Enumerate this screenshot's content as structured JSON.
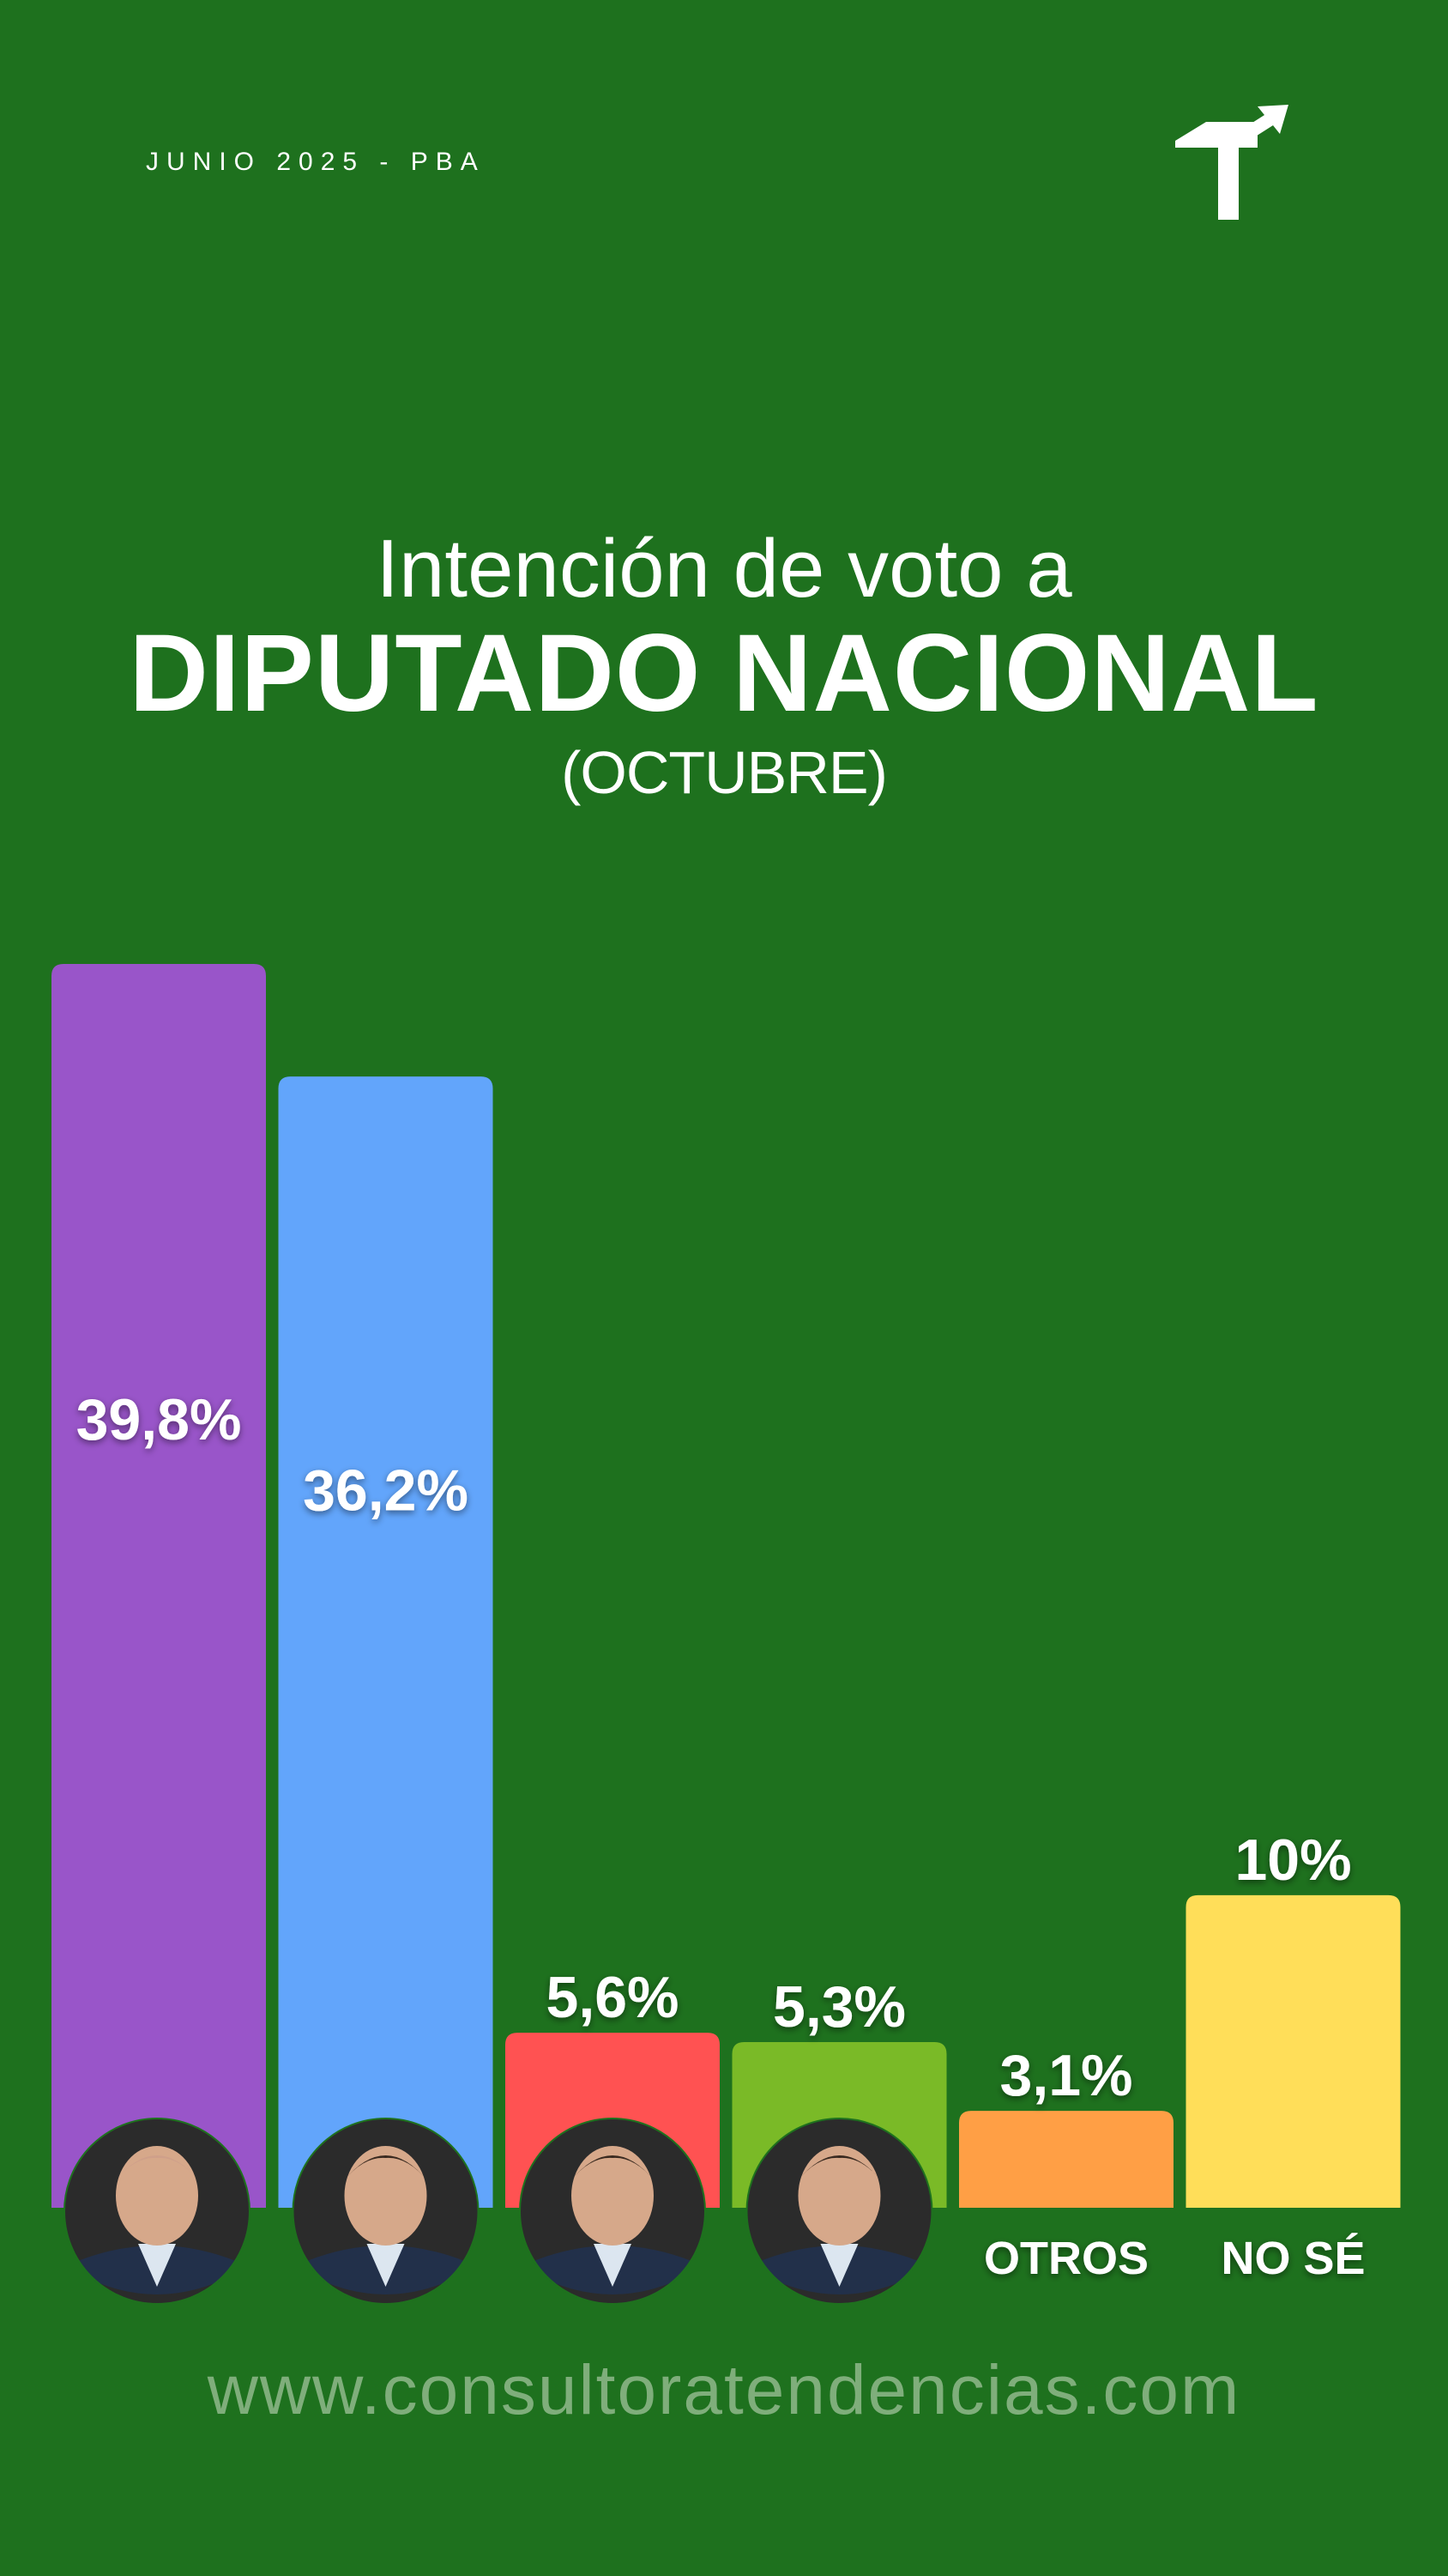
{
  "header": {
    "date_tag": "JUNIO 2025 - PBA",
    "logo_icon": "tendencias-logo-icon"
  },
  "title": {
    "line1": "Intención de voto a",
    "line2": "DIPUTADO NACIONAL",
    "line3": "(OCTUBRE)"
  },
  "colors": {
    "background": "#1e711e",
    "text": "#ffffff",
    "website": "#7fae7b"
  },
  "chart_data": {
    "type": "bar",
    "title": "Intención de voto a DIPUTADO NACIONAL",
    "subtitle": "(OCTUBRE)",
    "xlabel": "",
    "ylabel": "",
    "ylim": [
      0,
      40
    ],
    "grid": false,
    "categories": [
      "",
      "",
      "",
      "",
      "OTROS",
      "NO SÉ"
    ],
    "values": [
      39.8,
      36.2,
      5.6,
      5.3,
      3.1,
      10
    ],
    "value_labels": [
      "39,8%",
      "36,2%",
      "5,6%",
      "5,3%",
      "3,1%",
      "10%"
    ],
    "colors": [
      "#9955c9",
      "#62a5fb",
      "#ff5252",
      "#7aba27",
      "#ff9f45",
      "#ffde59"
    ],
    "candidate_photos": [
      true,
      true,
      true,
      true,
      false,
      false
    ]
  },
  "footer": {
    "website": "www.consultoratendencias.com"
  }
}
